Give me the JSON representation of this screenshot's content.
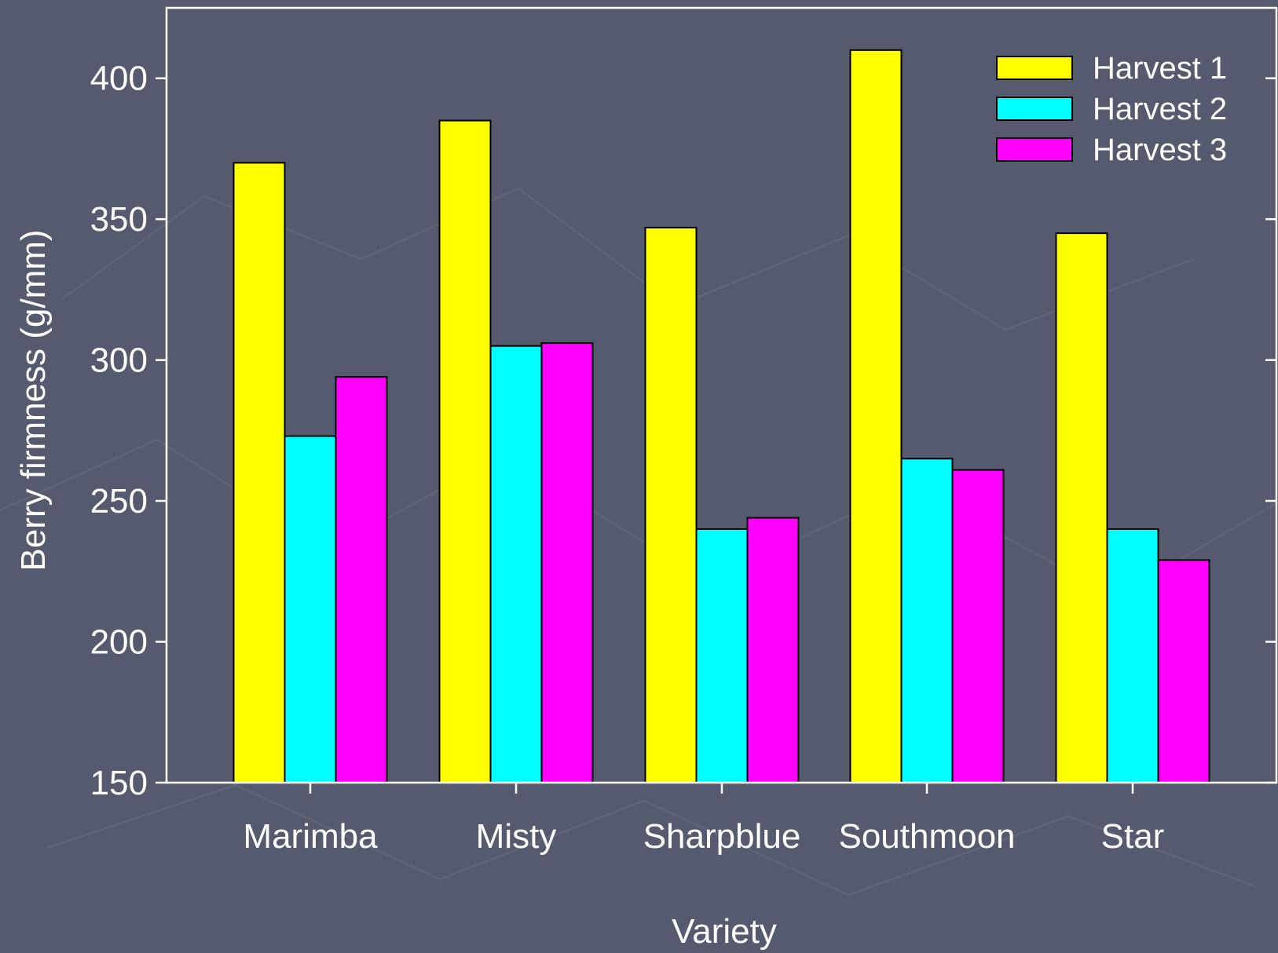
{
  "chart_data": {
    "type": "bar",
    "categories": [
      "Marimba",
      "Misty",
      "Sharpblue",
      "Southmoon",
      "Star"
    ],
    "series": [
      {
        "name": "Harvest 1",
        "color": "#ffff00",
        "values": [
          370,
          385,
          347,
          410,
          345
        ]
      },
      {
        "name": "Harvest 2",
        "color": "#00ffff",
        "values": [
          273,
          305,
          240,
          265,
          240
        ]
      },
      {
        "name": "Harvest 3",
        "color": "#ff00ff",
        "values": [
          294,
          306,
          244,
          261,
          229
        ]
      }
    ],
    "title": "",
    "xlabel": "Variety",
    "ylabel": "Berry firmness (g/mm)",
    "ylim": [
      150,
      425
    ],
    "yticks": [
      150,
      200,
      250,
      300,
      350,
      400
    ],
    "grid": false,
    "legend_position": "top-right"
  },
  "colors": {
    "background": "#555a6e",
    "axis": "#ffffff",
    "bar_outline": "#000000"
  }
}
